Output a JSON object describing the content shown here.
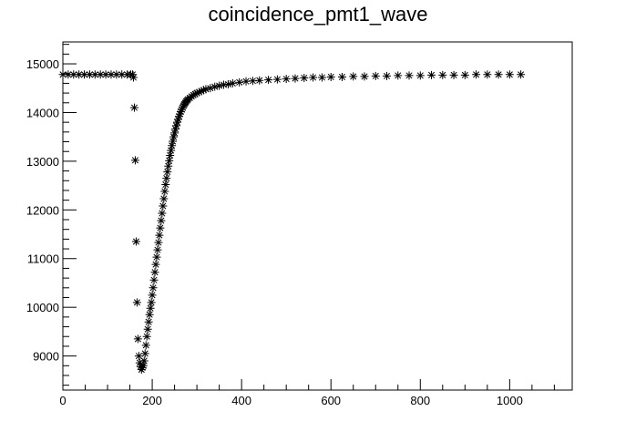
{
  "chart_data": {
    "type": "scatter",
    "title": "coincidence_pmt1_wave",
    "xlabel": "",
    "ylabel": "",
    "xlim": [
      0,
      1140
    ],
    "ylim": [
      8300,
      15450
    ],
    "x_ticks": [
      0,
      200,
      400,
      600,
      800,
      1000
    ],
    "y_ticks": [
      9000,
      10000,
      11000,
      12000,
      13000,
      14000,
      15000
    ],
    "grid": false,
    "legend": "none",
    "marker": "asterisk",
    "marker_color": "#000000",
    "series": [
      {
        "x": [
          0,
          12,
          24,
          36,
          48,
          60,
          72,
          84,
          96,
          108,
          120,
          132,
          144,
          152,
          156,
          158,
          160,
          162,
          164,
          166,
          168,
          170,
          172,
          174,
          176,
          178,
          180,
          182,
          184,
          186,
          188,
          190,
          192,
          194,
          196,
          198,
          200,
          202,
          204,
          206,
          208,
          210,
          212,
          214,
          216,
          218,
          220,
          222,
          224,
          226,
          228,
          230,
          232,
          234,
          236,
          238,
          240,
          242,
          244,
          246,
          248,
          250,
          252,
          254,
          256,
          258,
          260,
          262,
          264,
          266,
          268,
          270,
          272,
          274,
          276,
          278,
          280,
          284,
          288,
          292,
          296,
          300,
          305,
          310,
          315,
          320,
          330,
          340,
          350,
          360,
          370,
          380,
          395,
          410,
          425,
          440,
          460,
          480,
          500,
          520,
          540,
          560,
          580,
          600,
          625,
          650,
          675,
          700,
          725,
          750,
          775,
          800,
          825,
          850,
          875,
          900,
          925,
          950,
          975,
          1000,
          1025
        ],
        "y": [
          14780,
          14780,
          14780,
          14780,
          14780,
          14780,
          14780,
          14780,
          14780,
          14780,
          14780,
          14780,
          14780,
          14780,
          14780,
          14720,
          14100,
          13020,
          11350,
          10100,
          9350,
          9000,
          8860,
          8780,
          8720,
          8760,
          8800,
          8900,
          9050,
          9220,
          9400,
          9550,
          9700,
          9850,
          9980,
          10100,
          10250,
          10400,
          10560,
          10720,
          10880,
          11030,
          11180,
          11330,
          11480,
          11630,
          11780,
          11930,
          12080,
          12230,
          12380,
          12520,
          12650,
          12780,
          12900,
          13010,
          13120,
          13220,
          13320,
          13410,
          13500,
          13580,
          13660,
          13730,
          13800,
          13860,
          13920,
          13970,
          14020,
          14060,
          14100,
          14140,
          14170,
          14200,
          14230,
          14250,
          14270,
          14300,
          14330,
          14360,
          14380,
          14400,
          14420,
          14440,
          14460,
          14480,
          14500,
          14530,
          14550,
          14570,
          14580,
          14600,
          14620,
          14640,
          14650,
          14660,
          14670,
          14680,
          14690,
          14700,
          14710,
          14720,
          14720,
          14730,
          14730,
          14740,
          14740,
          14750,
          14750,
          14760,
          14760,
          14760,
          14770,
          14770,
          14770,
          14770,
          14780,
          14780,
          14780,
          14780,
          14780
        ]
      }
    ]
  }
}
